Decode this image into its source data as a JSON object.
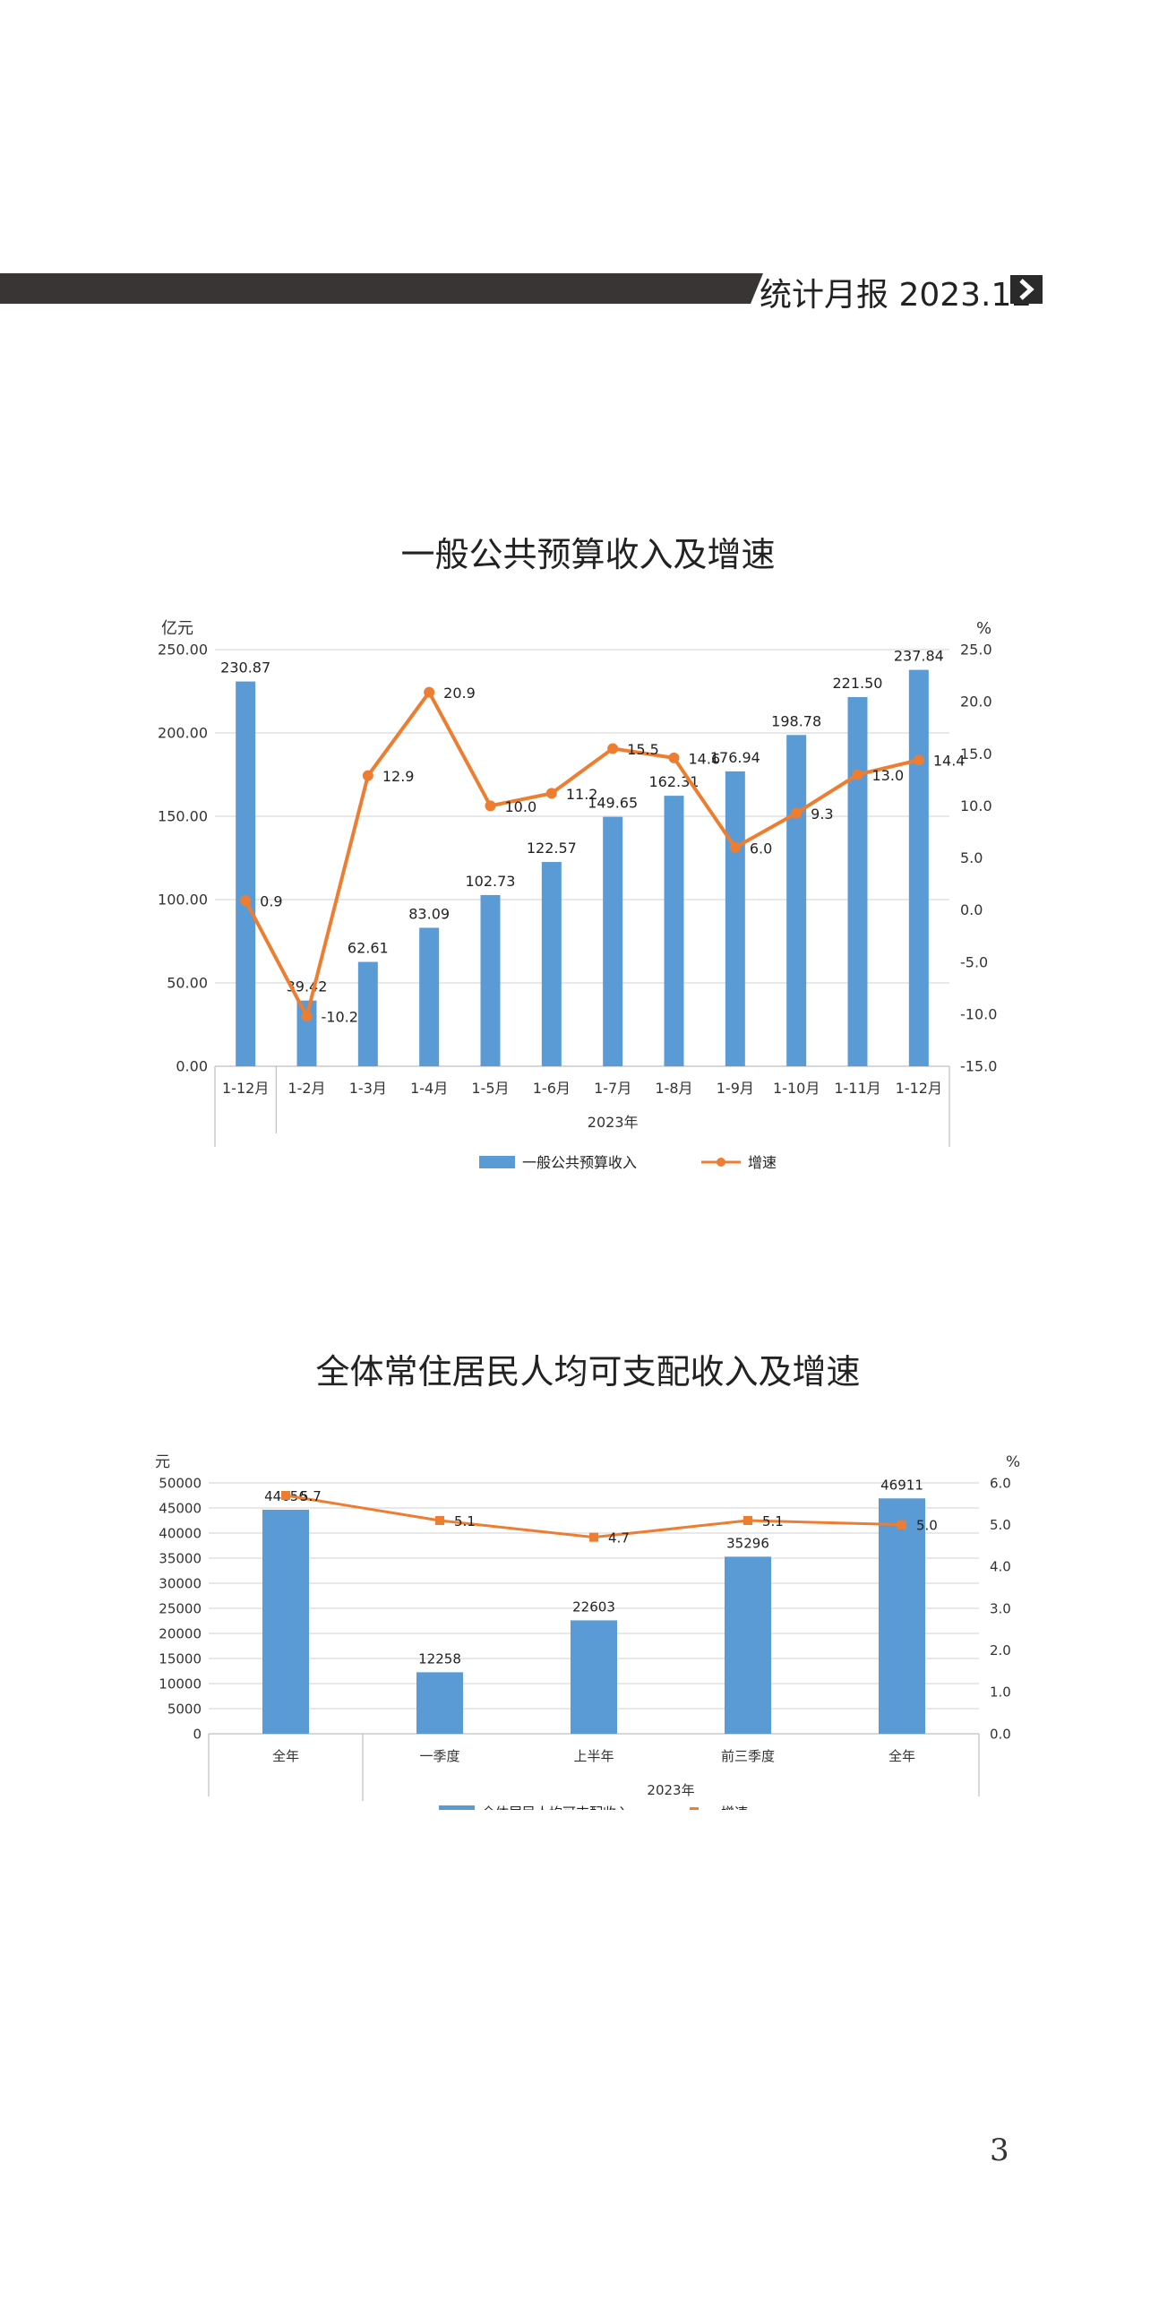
{
  "header": {
    "title": "统计月报 2023.12",
    "bar_color": "#3a3535",
    "arrow_icon": "chevron-right-icon"
  },
  "page_number": "3",
  "colors": {
    "bar": "#5b9bd5",
    "line": "#ed7d31",
    "grid": "#d9d9d9",
    "axis_text": "#333333"
  },
  "chart_data": [
    {
      "type": "bar",
      "title": "一般公共预算收入及增速",
      "left_unit": "亿元",
      "right_unit": "%",
      "categories": [
        "1-12月",
        "1-2月",
        "1-3月",
        "1-4月",
        "1-5月",
        "1-6月",
        "1-7月",
        "1-8月",
        "1-9月",
        "1-10月",
        "1-11月",
        "1-12月"
      ],
      "group_label": "2023年",
      "ylim": [
        0,
        250
      ],
      "y_ticks": [
        "0.00",
        "50.00",
        "100.00",
        "150.00",
        "200.00",
        "250.00"
      ],
      "y2lim": [
        -15,
        25
      ],
      "y2_ticks": [
        "-15.0",
        "-10.0",
        "-5.0",
        "0.0",
        "5.0",
        "10.0",
        "15.0",
        "20.0",
        "25.0"
      ],
      "series": [
        {
          "name": "一般公共预算收入",
          "kind": "bar",
          "values": [
            230.87,
            39.42,
            62.61,
            83.09,
            102.73,
            122.57,
            149.65,
            162.31,
            176.94,
            198.78,
            221.5,
            237.84
          ],
          "labels": [
            "230.87",
            "39.42",
            "62.61",
            "83.09",
            "102.73",
            "122.57",
            "149.65",
            "162.31",
            "176.94",
            "198.78",
            "221.50",
            "237.84"
          ]
        },
        {
          "name": "增速",
          "kind": "line",
          "values": [
            0.9,
            -10.2,
            12.9,
            20.9,
            10.0,
            11.2,
            15.5,
            14.6,
            6.0,
            9.3,
            13.0,
            14.4
          ],
          "labels": [
            "0.9",
            "-10.2",
            "12.9",
            "20.9",
            "10.0",
            "11.2",
            "15.5",
            "14.6",
            "6.0",
            "9.3",
            "13.0",
            "14.4"
          ]
        }
      ],
      "grid": true,
      "legend": "bottom"
    },
    {
      "type": "bar",
      "title": "全体常住居民人均可支配收入及增速",
      "left_unit": "元",
      "right_unit": "%",
      "categories": [
        "全年",
        "一季度",
        "上半年",
        "前三季度",
        "全年"
      ],
      "group_label": "2023年",
      "ylim": [
        0,
        50000
      ],
      "y_ticks": [
        "0",
        "5000",
        "10000",
        "15000",
        "20000",
        "25000",
        "30000",
        "35000",
        "40000",
        "45000",
        "50000"
      ],
      "y2lim": [
        0,
        6
      ],
      "y2_ticks": [
        "0.0",
        "1.0",
        "2.0",
        "3.0",
        "4.0",
        "5.0",
        "6.0"
      ],
      "series": [
        {
          "name": "全体居民人均可支配收入",
          "kind": "bar",
          "values": [
            44656,
            12258,
            22603,
            35296,
            46911
          ],
          "labels": [
            "44656",
            "12258",
            "22603",
            "35296",
            "46911"
          ]
        },
        {
          "name": "增速",
          "kind": "line",
          "values": [
            5.7,
            5.1,
            4.7,
            5.1,
            5.0
          ],
          "labels": [
            "5.7",
            "5.1",
            "4.7",
            "5.1",
            "5.0"
          ]
        }
      ],
      "grid": true,
      "legend": "bottom"
    }
  ]
}
